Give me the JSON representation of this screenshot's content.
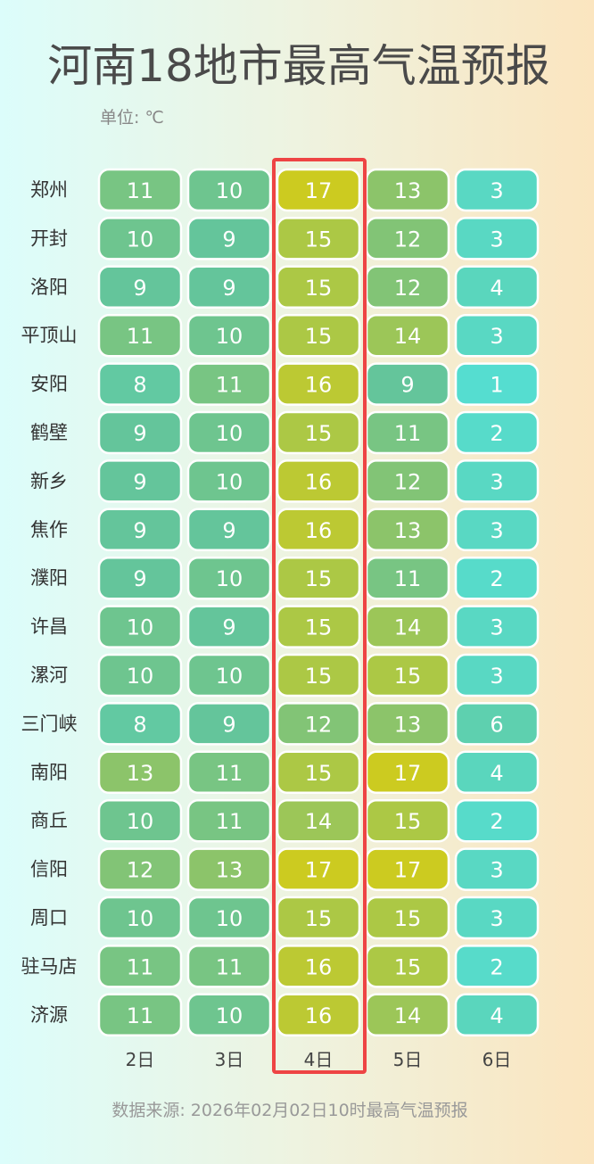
{
  "chart_data": {
    "type": "heatmap",
    "title": "河南18地市最高气温预报",
    "unit_label": "单位: ℃",
    "source": "数据来源: 2026年02月02日10时最高气温预报",
    "categories": [
      "2日",
      "3日",
      "4日",
      "5日",
      "6日"
    ],
    "rows": [
      "郑州",
      "开封",
      "洛阳",
      "平顶山",
      "安阳",
      "鹤壁",
      "新乡",
      "焦作",
      "濮阳",
      "许昌",
      "漯河",
      "三门峡",
      "南阳",
      "商丘",
      "信阳",
      "周口",
      "驻马店",
      "济源"
    ],
    "values": [
      [
        11,
        10,
        17,
        13,
        3
      ],
      [
        10,
        9,
        15,
        12,
        3
      ],
      [
        9,
        9,
        15,
        12,
        4
      ],
      [
        11,
        10,
        15,
        14,
        3
      ],
      [
        8,
        11,
        16,
        9,
        1
      ],
      [
        9,
        10,
        15,
        11,
        2
      ],
      [
        9,
        10,
        16,
        12,
        3
      ],
      [
        9,
        9,
        16,
        13,
        3
      ],
      [
        9,
        10,
        15,
        11,
        2
      ],
      [
        10,
        9,
        15,
        14,
        3
      ],
      [
        10,
        10,
        15,
        15,
        3
      ],
      [
        8,
        9,
        12,
        13,
        6
      ],
      [
        13,
        11,
        15,
        17,
        4
      ],
      [
        10,
        11,
        14,
        15,
        2
      ],
      [
        12,
        13,
        17,
        17,
        3
      ],
      [
        10,
        10,
        15,
        15,
        3
      ],
      [
        11,
        11,
        16,
        15,
        2
      ],
      [
        11,
        10,
        16,
        14,
        4
      ]
    ],
    "colors": [
      "#55ddd0",
      "#5cd3b6",
      "#64c59b",
      "#8cc46a",
      "#cccb20"
    ]
  }
}
